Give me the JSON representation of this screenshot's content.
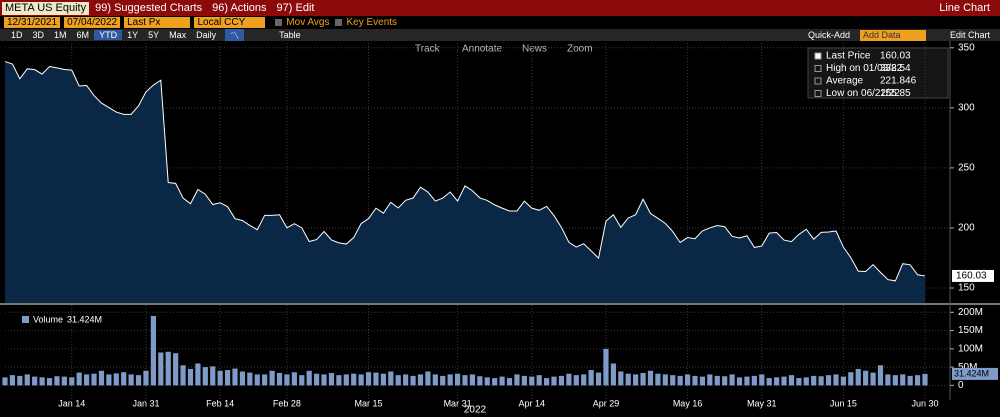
{
  "toolbar": {
    "ticker": "META US Equity",
    "suggested": "99) Suggested Charts",
    "actions": "96) Actions",
    "edit": "97) Edit",
    "title": "Line Chart"
  },
  "row2": {
    "start": "12/31/2021",
    "end": "07/04/2022",
    "field": "Last Px",
    "currency": "Local CCY",
    "mov_avgs": "Mov Avgs",
    "key_events": "Key Events"
  },
  "row3": {
    "periods": [
      "1D",
      "3D",
      "1M",
      "6M",
      "YTD",
      "1Y",
      "5Y",
      "Max"
    ],
    "frequency": "Daily",
    "table": "Table",
    "quick_add": "Quick-Add",
    "add_data": "Add Data",
    "edit_chart": "Edit Chart"
  },
  "tools": [
    "Track",
    "Annotate",
    "News",
    "Zoom"
  ],
  "x_axis_year": "2022",
  "chart_data": [
    {
      "type": "line",
      "series": [
        {
          "name": "Last Price",
          "color": "#ffffff",
          "fill": "#0b2746",
          "values": [
            338.54,
            336.5,
            324.2,
            332.5,
            331.8,
            328.1,
            334.4,
            333.3,
            331.9,
            331.4,
            318.2,
            318.6,
            310.2,
            304.0,
            300.2,
            296.5,
            294.6,
            294.6,
            301.7,
            313.3,
            319.0,
            323.0,
            237.8,
            237.1,
            224.9,
            220.2,
            232.0,
            228.1,
            219.5,
            221.0,
            217.7,
            207.7,
            206.2,
            202.1,
            198.5,
            210.5,
            210.5,
            211.0,
            200.1,
            203.5,
            200.1,
            188.7,
            190.3,
            197.0,
            190.0,
            187.6,
            186.6,
            192.0,
            203.6,
            207.8,
            216.5,
            212.3,
            221.3,
            216.6,
            223.0,
            224.9,
            233.9,
            229.9,
            222.4,
            224.9,
            229.9,
            222.4,
            235.0,
            231.0,
            225.0,
            222.9,
            219.2,
            216.5,
            214.1,
            214.1,
            222.3,
            216.5,
            214.7,
            218.0,
            210.2,
            200.4,
            188.1,
            184.1,
            186.9,
            180.9,
            174.9,
            205.7,
            211.0,
            200.5,
            208.3,
            211.0,
            224.0,
            212.0,
            208.0,
            203.8,
            197.0,
            187.9,
            192.0,
            191.0,
            197.5,
            200.0,
            202.0,
            201.0,
            193.0,
            191.6,
            193.5,
            183.8,
            184.9,
            195.7,
            196.2,
            189.9,
            188.6,
            194.6,
            198.9,
            190.6,
            196.3,
            196.6,
            197.5,
            184.0,
            175.3,
            164.0,
            163.7,
            169.4,
            163.0,
            157.0,
            155.9,
            170.2,
            169.3,
            161.0,
            160.03
          ]
        }
      ],
      "stats": [
        {
          "label": "Last Price",
          "value": 160.03
        },
        {
          "label": "High on 01/03/22",
          "value": 338.54
        },
        {
          "label": "Average",
          "value": 221.846
        },
        {
          "label": "Low on 06/22/22",
          "value": 155.85
        }
      ],
      "ylim": [
        137.5,
        354
      ],
      "yticks": [
        150,
        200,
        250,
        300,
        350
      ],
      "grid": true
    },
    {
      "type": "bar",
      "series": [
        {
          "name": "Volume",
          "color": "#7f9bc8",
          "values": [
            22,
            28,
            26,
            30,
            24,
            22,
            20,
            25,
            24,
            22,
            35,
            30,
            32,
            40,
            30,
            33,
            36,
            30,
            28,
            40,
            190,
            90,
            92,
            88,
            55,
            45,
            60,
            50,
            52,
            40,
            42,
            46,
            38,
            35,
            30,
            30,
            40,
            34,
            30,
            36,
            28,
            40,
            32,
            30,
            34,
            28,
            30,
            32,
            30,
            36,
            35,
            32,
            38,
            28,
            30,
            26,
            30,
            38,
            30,
            26,
            30,
            32,
            28,
            30,
            25,
            22,
            20,
            24,
            20,
            30,
            26,
            24,
            28,
            20,
            24,
            26,
            32,
            28,
            30,
            42,
            35,
            100,
            60,
            38,
            32,
            30,
            34,
            40,
            32,
            30,
            28,
            26,
            30,
            26,
            24,
            30,
            26,
            25,
            30,
            22,
            24,
            26,
            30,
            20,
            22,
            24,
            28,
            20,
            22,
            26,
            25,
            28,
            30,
            24,
            36,
            45,
            40,
            35,
            55,
            30,
            28,
            30,
            26,
            28,
            31.424
          ],
          "last": {
            "value": 31.424,
            "label": "31.424M"
          }
        }
      ],
      "categories": [
        null,
        null,
        null,
        null,
        null,
        null,
        null,
        null,
        null,
        "Jan 14",
        null,
        null,
        null,
        null,
        null,
        null,
        null,
        null,
        null,
        "Jan 31",
        null,
        null,
        null,
        null,
        null,
        null,
        null,
        null,
        null,
        "Feb 14",
        null,
        null,
        null,
        null,
        null,
        null,
        null,
        null,
        "Feb 28",
        null,
        null,
        null,
        null,
        null,
        null,
        null,
        null,
        null,
        null,
        "Mar 15",
        null,
        null,
        null,
        null,
        null,
        null,
        null,
        null,
        null,
        null,
        null,
        "Mar 31",
        null,
        null,
        null,
        null,
        null,
        null,
        null,
        null,
        null,
        "Apr 14",
        null,
        null,
        null,
        null,
        null,
        null,
        null,
        null,
        null,
        "Apr 29",
        null,
        null,
        null,
        null,
        null,
        null,
        null,
        null,
        null,
        null,
        "May 16",
        null,
        null,
        null,
        null,
        null,
        null,
        null,
        null,
        null,
        "May 31",
        null,
        null,
        null,
        null,
        null,
        null,
        null,
        null,
        null,
        null,
        "Jun 15",
        null,
        null,
        null,
        null,
        null,
        null,
        null,
        null,
        null,
        null,
        "Jun 30"
      ],
      "ylim": [
        -40,
        220
      ],
      "yticks": [
        0,
        {
          "value": 50,
          "label": "50M"
        },
        {
          "value": 100,
          "label": "100M"
        },
        {
          "value": 150,
          "label": "150M"
        },
        {
          "value": 200,
          "label": "200M"
        }
      ],
      "grid": true
    }
  ]
}
